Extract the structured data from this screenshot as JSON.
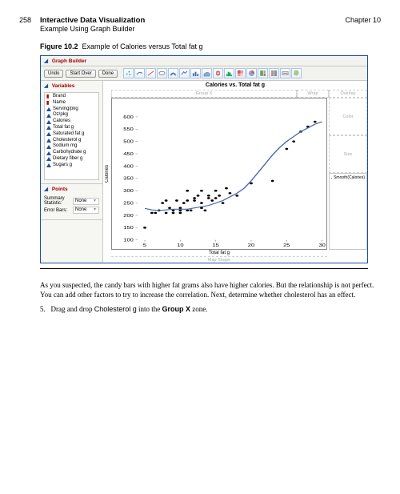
{
  "page": {
    "number": "258",
    "title_main": "Interactive Data Visualization",
    "title_sub": "Example Using Graph Builder",
    "chapter": "Chapter 10"
  },
  "figure": {
    "label": "Figure 10.2",
    "caption": "Example of Calories versus Total fat g"
  },
  "graph_builder": {
    "window_title": "Graph Builder",
    "toolbar": {
      "undo_label": "Undo",
      "start_over_label": "Start Over",
      "done_label": "Done"
    },
    "variables_section_title": "Variables",
    "variables": [
      {
        "name": "Brand",
        "type": "nominal"
      },
      {
        "name": "Name",
        "type": "nominal"
      },
      {
        "name": "Serving/pkg",
        "type": "continuous"
      },
      {
        "name": "Oz/pkg",
        "type": "continuous"
      },
      {
        "name": "Calories",
        "type": "continuous"
      },
      {
        "name": "Total fat g",
        "type": "continuous"
      },
      {
        "name": "Saturated fat g",
        "type": "continuous"
      },
      {
        "name": "Cholesterol g",
        "type": "continuous"
      },
      {
        "name": "Sodium mg",
        "type": "continuous"
      },
      {
        "name": "Carbohydrate g",
        "type": "continuous"
      },
      {
        "name": "Dietary fiber g",
        "type": "continuous"
      },
      {
        "name": "Sugars g",
        "type": "continuous"
      }
    ],
    "points_section_title": "Points",
    "points": {
      "summary_label": "Summary Statistic:",
      "summary_value": "None",
      "error_label": "Error Bars:",
      "error_value": "None"
    },
    "drop_zones": {
      "group_x": "Group X",
      "wrap": "Wrap",
      "overlay": "Overlay",
      "color": "Color",
      "size": "Size",
      "map_shape": "Map Shape"
    },
    "chart": {
      "title": "Calories vs. Total fat g",
      "x_label": "Total fat g",
      "y_label": "Calories",
      "legend_label": "Smooth(Calories)",
      "xlim": [
        4,
        30
      ],
      "ylim": [
        100,
        650
      ],
      "xticks": [
        5,
        10,
        15,
        20,
        25,
        30
      ],
      "yticks": [
        100,
        150,
        200,
        250,
        300,
        350,
        400,
        450,
        500,
        550,
        600
      ],
      "point_color": "#000000",
      "line_color": "#496aa8",
      "line_width": 1.2,
      "marker_size": 1.4,
      "background_color": "#ffffff",
      "axis_color": "#888888",
      "points": [
        [
          5,
          150
        ],
        [
          6,
          210
        ],
        [
          6.5,
          210
        ],
        [
          7,
          220
        ],
        [
          7.5,
          250
        ],
        [
          8,
          210
        ],
        [
          8,
          260
        ],
        [
          8.5,
          230
        ],
        [
          9,
          210
        ],
        [
          9,
          220
        ],
        [
          9.5,
          260
        ],
        [
          10,
          230
        ],
        [
          10,
          220
        ],
        [
          10,
          210
        ],
        [
          10.5,
          250
        ],
        [
          11,
          220
        ],
        [
          11,
          260
        ],
        [
          11,
          300
        ],
        [
          11.5,
          220
        ],
        [
          12,
          260
        ],
        [
          12,
          270
        ],
        [
          12.5,
          280
        ],
        [
          13,
          250
        ],
        [
          13,
          230
        ],
        [
          13,
          300
        ],
        [
          13.5,
          220
        ],
        [
          14,
          280
        ],
        [
          14,
          270
        ],
        [
          14.5,
          260
        ],
        [
          15,
          270
        ],
        [
          15,
          300
        ],
        [
          15.5,
          280
        ],
        [
          16,
          250
        ],
        [
          16.5,
          310
        ],
        [
          17,
          290
        ],
        [
          18,
          280
        ],
        [
          20,
          330
        ],
        [
          23,
          340
        ],
        [
          25,
          470
        ],
        [
          26,
          500
        ],
        [
          27,
          540
        ],
        [
          28,
          560
        ],
        [
          29,
          580
        ]
      ],
      "smooth": [
        [
          5,
          228
        ],
        [
          6,
          222
        ],
        [
          7,
          220
        ],
        [
          8,
          222
        ],
        [
          9,
          225
        ],
        [
          10,
          225
        ],
        [
          11,
          225
        ],
        [
          12,
          230
        ],
        [
          13,
          235
        ],
        [
          14,
          240
        ],
        [
          15,
          250
        ],
        [
          16,
          260
        ],
        [
          17,
          275
        ],
        [
          18,
          290
        ],
        [
          19,
          310
        ],
        [
          20,
          340
        ],
        [
          21,
          375
        ],
        [
          22,
          410
        ],
        [
          23,
          445
        ],
        [
          24,
          475
        ],
        [
          25,
          500
        ],
        [
          26,
          520
        ],
        [
          27,
          540
        ],
        [
          28,
          555
        ],
        [
          29,
          570
        ],
        [
          30,
          580
        ]
      ]
    }
  },
  "body": {
    "para1": "As you suspected, the candy bars with higher fat grams also have higher calories. But the relationship is not perfect. You can add other factors to try to increase the correlation. Next, determine whether cholesterol has an effect.",
    "step5_num": "5.",
    "step5_a": "Drag and drop ",
    "step5_var": "Cholesterol g",
    "step5_b": " into the ",
    "step5_zone": "Group X",
    "step5_c": " zone."
  }
}
